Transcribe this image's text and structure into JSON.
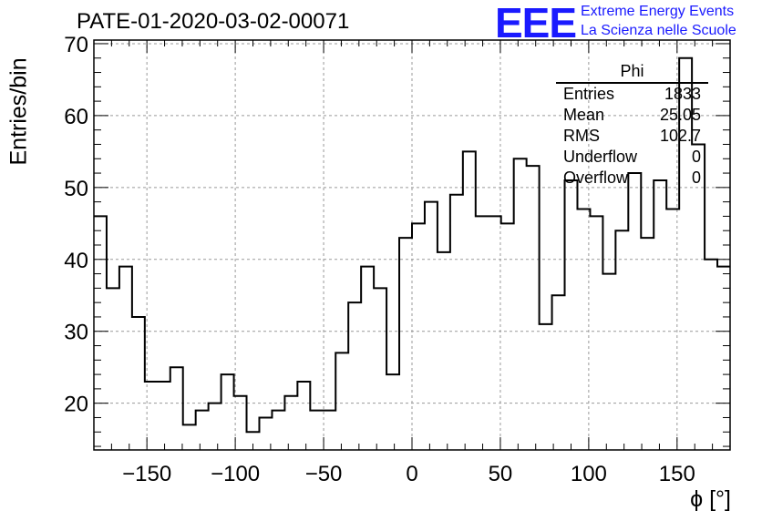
{
  "header": {
    "title": "PATE-01-2020-03-02-00071",
    "logo_text": "EEE",
    "logo_line1": "Extreme Energy Events",
    "logo_line2": "La Scienza nelle Scuole",
    "logo_color": "#1a1aff"
  },
  "stats_box": {
    "name": "Phi",
    "rows": [
      {
        "label": "Entries",
        "value": "1833"
      },
      {
        "label": "Mean",
        "value": "25.05"
      },
      {
        "label": "RMS",
        "value": "102.7"
      },
      {
        "label": "Underflow",
        "value": "0"
      },
      {
        "label": "Overflow",
        "value": "0"
      }
    ]
  },
  "chart_data": {
    "type": "histogram",
    "title": "PATE-01-2020-03-02-00071",
    "xlabel": "ϕ [°]",
    "ylabel": "Entries/bin",
    "xlim": [
      -180,
      180
    ],
    "ylim": [
      13.5,
      70.5
    ],
    "bin_width": 7.2,
    "xticks": [
      -150,
      -100,
      -50,
      0,
      50,
      100,
      150
    ],
    "yticks": [
      20,
      30,
      40,
      50,
      60,
      70
    ],
    "grid": true,
    "values": [
      46,
      36,
      39,
      32,
      23,
      23,
      25,
      17,
      19,
      20,
      24,
      21,
      16,
      18,
      19,
      21,
      23,
      19,
      19,
      27,
      34,
      39,
      36,
      24,
      43,
      45,
      48,
      41,
      49,
      55,
      46,
      46,
      45,
      54,
      53,
      31,
      35,
      51,
      47,
      46,
      38,
      44,
      52,
      43,
      51,
      47,
      68,
      56,
      40,
      39
    ]
  }
}
